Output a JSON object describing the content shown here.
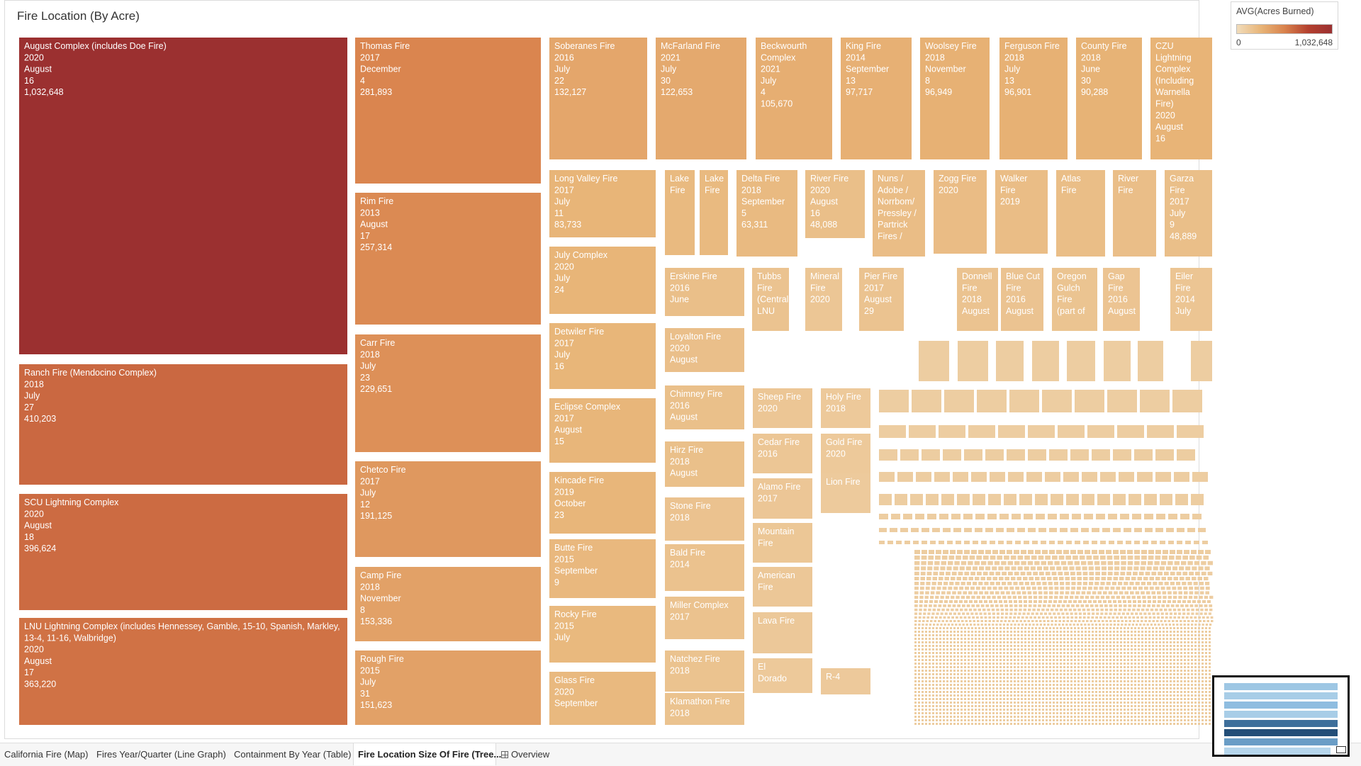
{
  "page": {
    "title": "Fire Location (By Acre)"
  },
  "legend": {
    "title": "AVG(Acres Burned)",
    "min_label": "0",
    "max_label": "1,032,648",
    "colors": [
      "#f1dcbb",
      "#e8b578",
      "#d9834d",
      "#b4402f",
      "#9b3030"
    ]
  },
  "tabs": [
    {
      "label": "California Fire (Map)",
      "active": false
    },
    {
      "label": "Fires Year/Quarter (Line Graph)",
      "active": false
    },
    {
      "label": "Containment By Year (Table)",
      "active": false
    },
    {
      "label": "Fire Location Size Of Fire (Tree...",
      "active": true
    },
    {
      "label": "Overview",
      "active": false,
      "icon": "overview-grid-icon"
    }
  ],
  "chart_data": {
    "type": "treemap",
    "title": "Fire Location (By Acre)",
    "measure": "AVG(Acres Burned)",
    "color_range": [
      0,
      1032648
    ],
    "items": [
      {
        "name": "August Complex (includes Doe Fire)",
        "year": "2020",
        "month": "August",
        "day": "16",
        "acres": 1032648,
        "label": [
          "August Complex (includes Doe Fire)",
          "2020",
          "August",
          "16",
          "1,032,648"
        ]
      },
      {
        "name": "Ranch Fire (Mendocino Complex)",
        "year": "2018",
        "month": "July",
        "day": "27",
        "acres": 410203,
        "label": [
          "Ranch Fire (Mendocino Complex)",
          "2018",
          "July",
          "27",
          "410,203"
        ]
      },
      {
        "name": "SCU Lightning Complex",
        "year": "2020",
        "month": "August",
        "day": "18",
        "acres": 396624,
        "label": [
          "SCU Lightning Complex",
          "2020",
          "August",
          "18",
          "396,624"
        ]
      },
      {
        "name": "LNU Lightning Complex (includes Hennessey, Gamble, 15-10, Spanish, Markley, 13-4, 11-16, Walbridge)",
        "year": "2020",
        "month": "August",
        "day": "17",
        "acres": 363220,
        "label": [
          "LNU Lightning Complex (includes Hennessey, Gamble, 15-10, Spanish, Markley,",
          "13-4, 11-16, Walbridge)",
          "2020",
          "August",
          "17",
          "363,220"
        ]
      },
      {
        "name": "Thomas Fire",
        "year": "2017",
        "month": "December",
        "day": "4",
        "acres": 281893,
        "label": [
          "Thomas Fire",
          "2017",
          "December",
          "4",
          "281,893"
        ]
      },
      {
        "name": "Rim Fire",
        "year": "2013",
        "month": "August",
        "day": "17",
        "acres": 257314,
        "label": [
          "Rim Fire",
          "2013",
          "August",
          "17",
          "257,314"
        ]
      },
      {
        "name": "Carr Fire",
        "year": "2018",
        "month": "July",
        "day": "23",
        "acres": 229651,
        "label": [
          "Carr Fire",
          "2018",
          "July",
          "23",
          "229,651"
        ]
      },
      {
        "name": "Chetco Fire",
        "year": "2017",
        "month": "July",
        "day": "12",
        "acres": 191125,
        "label": [
          "Chetco Fire",
          "2017",
          "July",
          "12",
          "191,125"
        ]
      },
      {
        "name": "Camp Fire",
        "year": "2018",
        "month": "November",
        "day": "8",
        "acres": 153336,
        "label": [
          "Camp Fire",
          "2018",
          "November",
          "8",
          "153,336"
        ]
      },
      {
        "name": "Rough Fire",
        "year": "2015",
        "month": "July",
        "day": "31",
        "acres": 151623,
        "label": [
          "Rough Fire",
          "2015",
          "July",
          "31",
          "151,623"
        ]
      },
      {
        "name": "Soberanes Fire",
        "year": "2016",
        "month": "July",
        "day": "22",
        "acres": 132127,
        "label": [
          "Soberanes Fire",
          "2016",
          "July",
          "22",
          "132,127"
        ]
      },
      {
        "name": "McFarland Fire",
        "year": "2021",
        "month": "July",
        "day": "30",
        "acres": 122653,
        "label": [
          "McFarland Fire",
          "2021",
          "July",
          "30",
          "122,653"
        ]
      },
      {
        "name": "Beckwourth Complex",
        "year": "2021",
        "month": "July",
        "day": "4",
        "acres": 105670,
        "label": [
          "Beckwourth",
          "Complex",
          "2021",
          "July",
          "4",
          "105,670"
        ]
      },
      {
        "name": "King Fire",
        "year": "2014",
        "month": "September",
        "day": "13",
        "acres": 97717,
        "label": [
          "King Fire",
          "2014",
          "September",
          "13",
          "97,717"
        ]
      },
      {
        "name": "Woolsey Fire",
        "year": "2018",
        "month": "November",
        "day": "8",
        "acres": 96949,
        "label": [
          "Woolsey Fire",
          "2018",
          "November",
          "8",
          "96,949"
        ]
      },
      {
        "name": "Ferguson Fire",
        "year": "2018",
        "month": "July",
        "day": "13",
        "acres": 96901,
        "label": [
          "Ferguson Fire",
          "2018",
          "July",
          "13",
          "96,901"
        ]
      },
      {
        "name": "County Fire",
        "year": "2018",
        "month": "June",
        "day": "30",
        "acres": 90288,
        "label": [
          "County Fire",
          "2018",
          "June",
          "30",
          "90,288"
        ]
      },
      {
        "name": "CZU Lightning Complex (Including Warnella Fire)",
        "year": "2020",
        "month": "August",
        "day": "16",
        "acres": 86509,
        "label": [
          "CZU",
          "Lightning",
          "Complex",
          "(Including",
          "Warnella",
          "Fire)",
          "2020",
          "August",
          "16"
        ]
      },
      {
        "name": "Long Valley Fire",
        "year": "2017",
        "month": "July",
        "day": "11",
        "acres": 83733,
        "label": [
          "Long Valley Fire",
          "2017",
          "July",
          "11",
          "83,733"
        ]
      },
      {
        "name": "July Complex",
        "year": "2020",
        "month": "July",
        "day": "24",
        "acres": 83000,
        "label": [
          "July Complex",
          "2020",
          "July",
          "24"
        ]
      },
      {
        "name": "Detwiler Fire",
        "year": "2017",
        "month": "July",
        "day": "16",
        "acres": 81000,
        "label": [
          "Detwiler Fire",
          "2017",
          "July",
          "16"
        ]
      },
      {
        "name": "Eclipse Complex",
        "year": "2017",
        "month": "August",
        "day": "15",
        "acres": 78000,
        "label": [
          "Eclipse Complex",
          "2017",
          "August",
          "15"
        ]
      },
      {
        "name": "Kincade Fire",
        "year": "2019",
        "month": "October",
        "day": "23",
        "acres": 77758,
        "label": [
          "Kincade Fire",
          "2019",
          "October",
          "23"
        ]
      },
      {
        "name": "Butte Fire",
        "year": "2015",
        "month": "September",
        "day": "9",
        "acres": 70868,
        "label": [
          "Butte Fire",
          "2015",
          "September",
          "9"
        ]
      },
      {
        "name": "Rocky Fire",
        "year": "2015",
        "month": "July",
        "acres": 69438,
        "label": [
          "Rocky Fire",
          "2015",
          "July"
        ]
      },
      {
        "name": "Glass Fire",
        "year": "2020",
        "month": "September",
        "acres": 67484,
        "label": [
          "Glass Fire",
          "2020",
          "September"
        ]
      },
      {
        "name": "Lake Fire",
        "acres": 66000,
        "label": [
          "Lake",
          "Fire"
        ]
      },
      {
        "name": "Lake Fire",
        "acres": 65000,
        "label": [
          "Lake",
          "Fire"
        ]
      },
      {
        "name": "Delta Fire",
        "year": "2018",
        "month": "September",
        "day": "5",
        "acres": 63311,
        "label": [
          "Delta Fire",
          "2018",
          "September",
          "5",
          "63,311"
        ]
      },
      {
        "name": "River Fire",
        "year": "2020",
        "month": "August",
        "day": "16",
        "acres": 48088,
        "label": [
          "River Fire",
          "2020",
          "August",
          "16",
          "48,088"
        ]
      },
      {
        "name": "Nuns / Adobe / Norrbom / Pressley / Partrick Fires",
        "acres": 54000,
        "label": [
          "Nuns /",
          "Adobe /",
          "Norrbom/",
          "Pressley /",
          "Partrick",
          "Fires /"
        ]
      },
      {
        "name": "Zogg Fire",
        "year": "2020",
        "acres": 56338,
        "label": [
          "Zogg Fire",
          "2020"
        ]
      },
      {
        "name": "Walker Fire",
        "year": "2019",
        "acres": 54612,
        "label": [
          "Walker",
          "Fire",
          "2019"
        ]
      },
      {
        "name": "Atlas Fire",
        "acres": 51624,
        "label": [
          "Atlas",
          "Fire"
        ]
      },
      {
        "name": "River Fire",
        "acres": 50000,
        "label": [
          "River",
          "Fire"
        ]
      },
      {
        "name": "Garza Fire",
        "year": "2017",
        "month": "July",
        "day": "9",
        "acres": 48889,
        "label": [
          "Garza",
          "Fire",
          "2017",
          "July",
          "9",
          "48,889"
        ]
      },
      {
        "name": "Erskine Fire",
        "year": "2016",
        "month": "June",
        "acres": 48019,
        "label": [
          "Erskine Fire",
          "2016",
          "June"
        ]
      },
      {
        "name": "Tubbs Fire (Central LNU)",
        "acres": 36807,
        "label": [
          "Tubbs",
          "Fire",
          "(Central",
          "LNU"
        ]
      },
      {
        "name": "Mineral Fire",
        "year": "2020",
        "acres": 29667,
        "label": [
          "Mineral",
          "Fire",
          "2020"
        ]
      },
      {
        "name": "Pier Fire",
        "year": "2017",
        "month": "August",
        "day": "29",
        "acres": 36556,
        "label": [
          "Pier Fire",
          "2017",
          "August",
          "29"
        ]
      },
      {
        "name": "Donnell Fire",
        "year": "2018",
        "month": "August",
        "acres": 36450,
        "label": [
          "Donnell",
          "Fire",
          "2018",
          "August"
        ]
      },
      {
        "name": "Blue Cut Fire",
        "year": "2016",
        "month": "August",
        "acres": 36274,
        "label": [
          "Blue Cut",
          "Fire",
          "2016",
          "August"
        ]
      },
      {
        "name": "Oregon Gulch Fire (part of",
        "acres": 35302,
        "label": [
          "Oregon",
          "Gulch",
          "Fire",
          "(part of"
        ]
      },
      {
        "name": "Gap Fire",
        "year": "2016",
        "month": "August",
        "acres": 33867,
        "label": [
          "Gap",
          "Fire",
          "2016",
          "August"
        ]
      },
      {
        "name": "Eiler Fire",
        "year": "2014",
        "month": "July",
        "acres": 32416,
        "label": [
          "Eiler",
          "Fire",
          "2014",
          "July"
        ]
      },
      {
        "name": "Loyalton Fire",
        "year": "2020",
        "month": "August",
        "acres": 47029,
        "label": [
          "Loyalton Fire",
          "2020",
          "August"
        ]
      },
      {
        "name": "Chimney Fire",
        "year": "2016",
        "month": "August",
        "acres": 46344,
        "label": [
          "Chimney Fire",
          "2016",
          "August"
        ]
      },
      {
        "name": "Hirz Fire",
        "year": "2018",
        "month": "August",
        "acres": 46150,
        "label": [
          "Hirz Fire",
          "2018",
          "August"
        ]
      },
      {
        "name": "Stone Fire",
        "year": "2018",
        "acres": 39000,
        "label": [
          "Stone Fire",
          "2018"
        ]
      },
      {
        "name": "Bald Fire",
        "year": "2014",
        "acres": 39736,
        "label": [
          "Bald Fire",
          "2014"
        ]
      },
      {
        "name": "Miller Complex",
        "year": "2017",
        "acres": 39715,
        "label": [
          "Miller Complex",
          "2017"
        ]
      },
      {
        "name": "Natchez Fire",
        "year": "2018",
        "acres": 38134,
        "label": [
          "Natchez Fire",
          "2018"
        ]
      },
      {
        "name": "Klamathon Fire",
        "year": "2018",
        "acres": 38008,
        "label": [
          "Klamathon Fire",
          "2018"
        ]
      },
      {
        "name": "Sheep Fire",
        "year": "2020",
        "acres": 29570,
        "label": [
          "Sheep Fire",
          "2020"
        ]
      },
      {
        "name": "Cedar Fire",
        "year": "2016",
        "acres": 29322,
        "label": [
          "Cedar Fire",
          "2016"
        ]
      },
      {
        "name": "Alamo Fire",
        "year": "2017",
        "acres": 28687,
        "label": [
          "Alamo Fire",
          "2017"
        ]
      },
      {
        "name": "Mountain Fire",
        "acres": 27531,
        "label": [
          "Mountain",
          "Fire"
        ]
      },
      {
        "name": "American Fire",
        "acres": 27440,
        "label": [
          "American",
          "Fire"
        ]
      },
      {
        "name": "Lava Fire",
        "acres": 24460,
        "label": [
          "Lava Fire"
        ]
      },
      {
        "name": "El Dorado",
        "acres": 22744,
        "label": [
          "El",
          "Dorado"
        ]
      },
      {
        "name": "Holy Fire",
        "year": "2018",
        "acres": 23136,
        "label": [
          "Holy Fire",
          "2018"
        ]
      },
      {
        "name": "Gold Fire",
        "year": "2020",
        "acres": 22635,
        "label": [
          "Gold Fire",
          "2020"
        ]
      },
      {
        "name": "Lion Fire",
        "acres": 20564,
        "label": [
          "Lion Fire"
        ]
      },
      {
        "name": "R-4 Fire",
        "acres": 22000,
        "label": [
          "R-4",
          "Fire"
        ]
      }
    ]
  }
}
